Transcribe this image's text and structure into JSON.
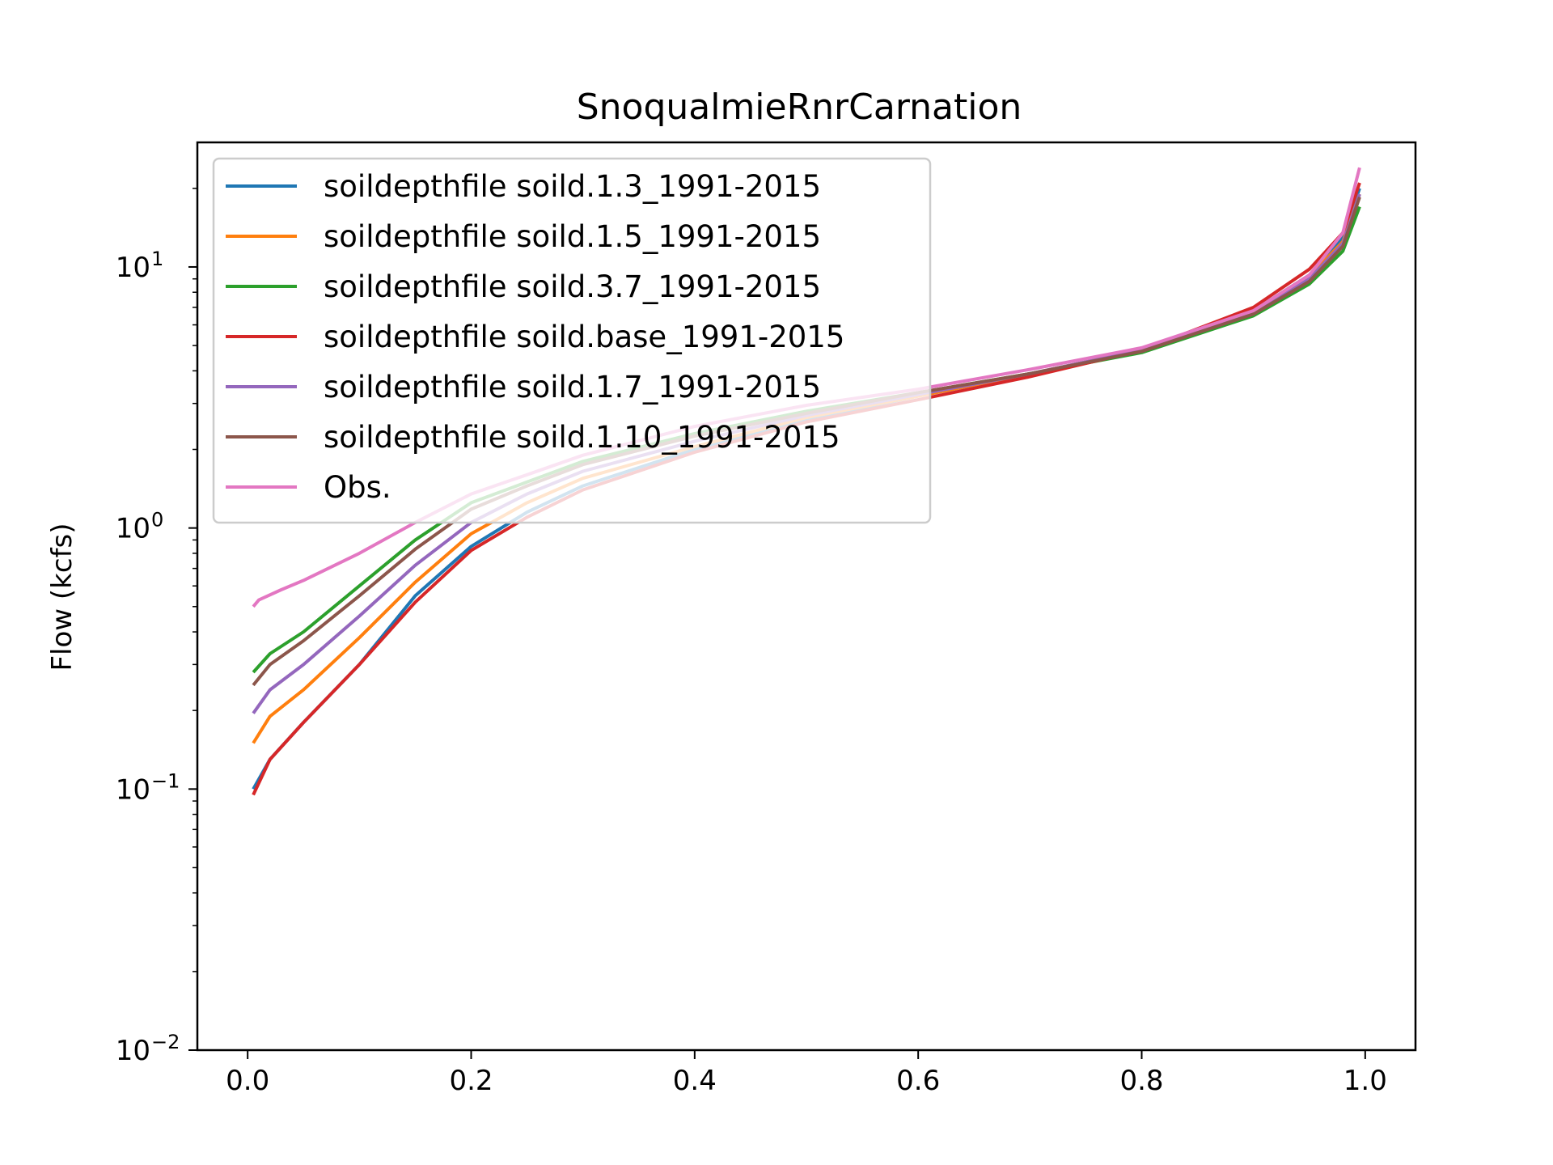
{
  "chart_data": {
    "type": "line",
    "title": "SnoqualmieRnrCarnation",
    "xlabel": "",
    "ylabel": "Flow (kcfs)",
    "y_scale": "log",
    "xlim": [
      -0.045,
      1.045
    ],
    "ylim": [
      0.01,
      30
    ],
    "x_ticks": [
      "0.0",
      "0.2",
      "0.4",
      "0.6",
      "0.8",
      "1.0"
    ],
    "x_tick_values": [
      0.0,
      0.2,
      0.4,
      0.6,
      0.8,
      1.0
    ],
    "y_ticks": [
      {
        "base": "10",
        "exp": "−2",
        "value": 0.01
      },
      {
        "base": "10",
        "exp": "−1",
        "value": 0.1
      },
      {
        "base": "10",
        "exp": "0",
        "value": 1
      },
      {
        "base": "10",
        "exp": "1",
        "value": 10
      }
    ],
    "grid": false,
    "legend_position": "upper-left",
    "series": [
      {
        "name": "soildepthfile soild.1.3_1991-2015",
        "color": "#1f77b4",
        "points": [
          [
            0.005,
            0.1
          ],
          [
            0.02,
            0.13
          ],
          [
            0.05,
            0.18
          ],
          [
            0.1,
            0.3
          ],
          [
            0.15,
            0.55
          ],
          [
            0.2,
            0.85
          ],
          [
            0.25,
            1.15
          ],
          [
            0.3,
            1.45
          ],
          [
            0.4,
            2.0
          ],
          [
            0.5,
            2.6
          ],
          [
            0.6,
            3.2
          ],
          [
            0.7,
            3.9
          ],
          [
            0.8,
            4.8
          ],
          [
            0.9,
            6.8
          ],
          [
            0.95,
            9.3
          ],
          [
            0.98,
            13.0
          ],
          [
            0.995,
            20.0
          ]
        ]
      },
      {
        "name": "soildepthfile soild.1.5_1991-2015",
        "color": "#ff7f0e",
        "points": [
          [
            0.005,
            0.15
          ],
          [
            0.02,
            0.19
          ],
          [
            0.05,
            0.24
          ],
          [
            0.1,
            0.38
          ],
          [
            0.15,
            0.62
          ],
          [
            0.2,
            0.95
          ],
          [
            0.25,
            1.25
          ],
          [
            0.3,
            1.55
          ],
          [
            0.4,
            2.05
          ],
          [
            0.5,
            2.65
          ],
          [
            0.6,
            3.2
          ],
          [
            0.7,
            3.9
          ],
          [
            0.8,
            4.8
          ],
          [
            0.9,
            6.8
          ],
          [
            0.95,
            9.2
          ],
          [
            0.98,
            12.5
          ],
          [
            0.995,
            19.0
          ]
        ]
      },
      {
        "name": "soildepthfile soild.3.7_1991-2015",
        "color": "#2ca02c",
        "points": [
          [
            0.005,
            0.28
          ],
          [
            0.02,
            0.33
          ],
          [
            0.05,
            0.4
          ],
          [
            0.1,
            0.6
          ],
          [
            0.15,
            0.9
          ],
          [
            0.2,
            1.25
          ],
          [
            0.25,
            1.5
          ],
          [
            0.3,
            1.8
          ],
          [
            0.4,
            2.3
          ],
          [
            0.5,
            2.8
          ],
          [
            0.6,
            3.3
          ],
          [
            0.7,
            3.9
          ],
          [
            0.8,
            4.7
          ],
          [
            0.9,
            6.5
          ],
          [
            0.95,
            8.6
          ],
          [
            0.98,
            11.5
          ],
          [
            0.995,
            17.0
          ]
        ]
      },
      {
        "name": "soildepthfile soild.base_1991-2015",
        "color": "#d62728",
        "points": [
          [
            0.005,
            0.095
          ],
          [
            0.02,
            0.13
          ],
          [
            0.05,
            0.18
          ],
          [
            0.1,
            0.3
          ],
          [
            0.15,
            0.52
          ],
          [
            0.2,
            0.82
          ],
          [
            0.25,
            1.1
          ],
          [
            0.3,
            1.4
          ],
          [
            0.4,
            1.95
          ],
          [
            0.5,
            2.55
          ],
          [
            0.6,
            3.1
          ],
          [
            0.7,
            3.8
          ],
          [
            0.8,
            4.8
          ],
          [
            0.9,
            7.0
          ],
          [
            0.95,
            9.8
          ],
          [
            0.98,
            13.5
          ],
          [
            0.995,
            21.0
          ]
        ]
      },
      {
        "name": "soildepthfile soild.1.7_1991-2015",
        "color": "#9467bd",
        "points": [
          [
            0.005,
            0.195
          ],
          [
            0.02,
            0.24
          ],
          [
            0.05,
            0.3
          ],
          [
            0.1,
            0.46
          ],
          [
            0.15,
            0.72
          ],
          [
            0.2,
            1.05
          ],
          [
            0.25,
            1.35
          ],
          [
            0.3,
            1.65
          ],
          [
            0.4,
            2.15
          ],
          [
            0.5,
            2.7
          ],
          [
            0.6,
            3.25
          ],
          [
            0.7,
            3.9
          ],
          [
            0.8,
            4.8
          ],
          [
            0.9,
            6.7
          ],
          [
            0.95,
            9.0
          ],
          [
            0.98,
            12.3
          ],
          [
            0.995,
            19.0
          ]
        ]
      },
      {
        "name": "soildepthfile soild.1.10_1991-2015",
        "color": "#8c564b",
        "points": [
          [
            0.005,
            0.25
          ],
          [
            0.02,
            0.3
          ],
          [
            0.05,
            0.37
          ],
          [
            0.1,
            0.55
          ],
          [
            0.15,
            0.83
          ],
          [
            0.2,
            1.18
          ],
          [
            0.25,
            1.45
          ],
          [
            0.3,
            1.75
          ],
          [
            0.4,
            2.25
          ],
          [
            0.5,
            2.75
          ],
          [
            0.6,
            3.3
          ],
          [
            0.7,
            3.9
          ],
          [
            0.8,
            4.75
          ],
          [
            0.9,
            6.6
          ],
          [
            0.95,
            8.8
          ],
          [
            0.98,
            12.0
          ],
          [
            0.995,
            18.5
          ]
        ]
      },
      {
        "name": "Obs.",
        "color": "#e377c2",
        "points": [
          [
            0.005,
            0.5
          ],
          [
            0.01,
            0.53
          ],
          [
            0.03,
            0.58
          ],
          [
            0.05,
            0.63
          ],
          [
            0.1,
            0.8
          ],
          [
            0.15,
            1.05
          ],
          [
            0.2,
            1.35
          ],
          [
            0.25,
            1.6
          ],
          [
            0.3,
            1.9
          ],
          [
            0.4,
            2.45
          ],
          [
            0.5,
            2.95
          ],
          [
            0.6,
            3.4
          ],
          [
            0.7,
            4.05
          ],
          [
            0.8,
            4.9
          ],
          [
            0.9,
            6.8
          ],
          [
            0.95,
            9.3
          ],
          [
            0.98,
            13.5
          ],
          [
            0.995,
            24.0
          ]
        ]
      }
    ]
  }
}
